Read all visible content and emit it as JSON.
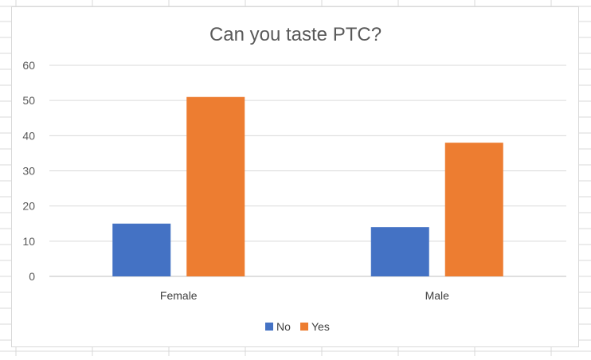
{
  "colors": {
    "No": "#4472c4",
    "Yes": "#ed7d31"
  },
  "chart_data": {
    "type": "bar",
    "title": "Can you taste PTC?",
    "categories": [
      "Female",
      "Male"
    ],
    "series": [
      {
        "name": "No",
        "values": [
          15,
          14
        ]
      },
      {
        "name": "Yes",
        "values": [
          51,
          38
        ]
      }
    ],
    "xlabel": "",
    "ylabel": "",
    "ylim": [
      0,
      60
    ],
    "yticks": [
      "0",
      "10",
      "20",
      "30",
      "40",
      "50",
      "60"
    ],
    "grid": true,
    "legend": "bottom"
  }
}
